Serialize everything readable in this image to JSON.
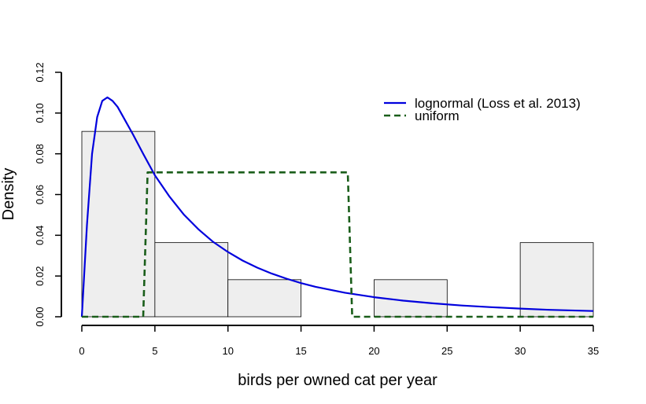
{
  "chart_data": {
    "type": "histogram-with-density",
    "title": "",
    "xlabel": "birds per owned cat per year",
    "ylabel": "Density",
    "xlim": [
      0,
      35
    ],
    "ylim": [
      0,
      0.12
    ],
    "xticks": [
      "0",
      "5",
      "10",
      "15",
      "20",
      "25",
      "30",
      "35"
    ],
    "yticks": [
      "0.00",
      "0.02",
      "0.04",
      "0.06",
      "0.08",
      "0.10",
      "0.12"
    ],
    "histogram": {
      "bins": [
        {
          "x0": 0,
          "x1": 5,
          "density": 0.091
        },
        {
          "x0": 5,
          "x1": 10,
          "density": 0.0364
        },
        {
          "x0": 10,
          "x1": 15,
          "density": 0.0182
        },
        {
          "x0": 15,
          "x1": 20,
          "density": 0
        },
        {
          "x0": 20,
          "x1": 25,
          "density": 0.0182
        },
        {
          "x0": 25,
          "x1": 30,
          "density": 0
        },
        {
          "x0": 30,
          "x1": 35,
          "density": 0.0364
        }
      ],
      "fill": "#eeeeee",
      "stroke": "#000000"
    },
    "series": [
      {
        "name": "lognormal (Loss et al. 2013)",
        "color": "#0000dd",
        "dash": "solid",
        "x": [
          0,
          0.35,
          0.7,
          1.05,
          1.4,
          1.75,
          2.1,
          2.45,
          2.8,
          3.5,
          4.2,
          5,
          6,
          7,
          8,
          9,
          10,
          11,
          12,
          13,
          14,
          15,
          16,
          18,
          20,
          22,
          24,
          26,
          28,
          30,
          32,
          35
        ],
        "y": [
          0,
          0.045,
          0.08,
          0.098,
          0.106,
          0.1077,
          0.106,
          0.103,
          0.0985,
          0.0895,
          0.08,
          0.0694,
          0.059,
          0.05,
          0.0428,
          0.0367,
          0.0318,
          0.0276,
          0.0241,
          0.0212,
          0.0187,
          0.0165,
          0.0147,
          0.0118,
          0.0096,
          0.0079,
          0.0066,
          0.0055,
          0.0047,
          0.004,
          0.0034,
          0.0028
        ]
      },
      {
        "name": "uniform",
        "color": "#1a5e1a",
        "dash": "dashed",
        "x": [
          0,
          4.2,
          4.5,
          18.2,
          18.5,
          35
        ],
        "y": [
          0,
          0,
          0.0709,
          0.0709,
          0,
          0
        ]
      }
    ],
    "legend_position": "top-right"
  }
}
